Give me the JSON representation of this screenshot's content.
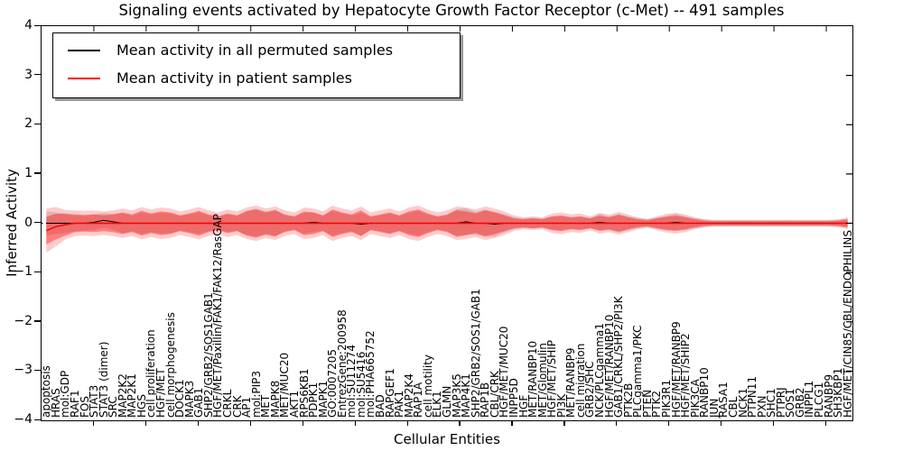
{
  "chart_data": {
    "type": "line",
    "title": "Signaling events activated by Hepatocyte Growth Factor Receptor (c-Met) -- 491 samples",
    "xlabel": "Cellular Entities",
    "ylabel": "Inferred Activity",
    "ylim": [
      -4,
      4
    ],
    "ytick_values": [
      4,
      3,
      2,
      1,
      0,
      -1,
      -2,
      -3,
      -4
    ],
    "ytick_labels": [
      "4",
      "3",
      "2",
      "1",
      "0",
      "−1",
      "−2",
      "−3",
      "−4"
    ],
    "grid": false,
    "legend_position": "upper left",
    "zero_line": {
      "style": "dotted",
      "color": "#000000",
      "y": 0
    },
    "categories": [
      "apoptosis",
      "HRAS",
      "mol:GDP",
      "RAF1",
      "FOS",
      "STAT3",
      "STAT3 (dimer)",
      "SRC",
      "MAP2K2",
      "MAP2K1",
      "HGS",
      "cell proliferation",
      "HGF/MET",
      "cell morphogenesis",
      "DOCK1",
      "MAPK3",
      "GAB1",
      "SHP2/GRB2/SOS1GAB1",
      "HGF/MET/Paxillin/FAK1/FAK12/RasGAP",
      "CRKL",
      "CRK",
      "AP1",
      "mol:PIP3",
      "MET",
      "MAPK8",
      "MET/MUC20",
      "AKT1",
      "RPS6KB1",
      "PDPK1",
      "MAPK1",
      "GO:0007205",
      "EntrezGene:200958",
      "mol:SU11274",
      "mol:SU5416",
      "mol:PHA665752",
      "BAD",
      "RAPGEF1",
      "PAK1",
      "MAP2K4",
      "RAP1A",
      "cell motility",
      "ELK1",
      "GLMN",
      "MAP3K5",
      "MAP4K1",
      "SHP2/GRB2/SOS1/GAB1",
      "RAP1B",
      "CBL/CRK",
      "HGF/MET/MUC20",
      "INPP5D",
      "HGF",
      "MET/RANBP10",
      "MET/Glomulin",
      "HGF/MET/SHIP",
      "PI3K",
      "MET/RANBP9",
      "cell migration",
      "GRB2/SHC",
      "NCK/PLCgamma1",
      "HGF/MET/RANBP10",
      "GAB1/CRKL/SHP2/PI3K",
      "PTK2B",
      "PLCgamma1/PKC",
      "PTEN",
      "PTK2",
      "PIK3R1",
      "HGF/MET/RANBP9",
      "HGF/MET/SHIP2",
      "PIK3CA",
      "RANBP10",
      "JUN",
      "RASA1",
      "CBL",
      "NCK1",
      "PTPN11",
      "PXN",
      "SHC1",
      "PTPRJ",
      "SOS1",
      "GRB2",
      "INPPL1",
      "PLCG1",
      "RANBP9",
      "SH3KBP1",
      "HGF/MET/CIN85/CBL/ENDOPHILINS"
    ],
    "series": [
      {
        "name": "Mean activity in all permuted samples",
        "color": "#000000",
        "values": [
          0,
          0,
          0,
          0,
          0,
          0.02,
          0.06,
          0.03,
          0,
          0,
          0,
          0,
          0,
          0,
          0,
          0,
          0,
          0,
          0,
          0,
          0,
          0,
          0,
          0,
          0,
          0,
          0,
          0,
          0.02,
          0,
          0,
          0,
          0,
          -0.02,
          0,
          0,
          0,
          0,
          0,
          0,
          0,
          0,
          0,
          0,
          0.03,
          0,
          0,
          -0.02,
          0,
          0,
          0,
          0,
          0,
          0,
          0,
          0,
          0,
          0,
          0.02,
          0,
          0,
          0,
          0,
          0,
          0,
          0,
          0.02,
          0,
          0,
          0,
          0,
          0,
          0,
          0,
          0,
          0,
          0,
          0,
          0,
          0,
          0,
          0,
          0,
          0,
          0
        ]
      },
      {
        "name": "Mean activity in patient samples",
        "color": "#ff0000",
        "values": [
          -0.15,
          -0.07,
          -0.03,
          0,
          0,
          0,
          0,
          0,
          0,
          0,
          0,
          0,
          0,
          0,
          0,
          0,
          0,
          0,
          0,
          0,
          0,
          0,
          0,
          0,
          0,
          0,
          0,
          0,
          0,
          0,
          0,
          0,
          0,
          0,
          0,
          0,
          0,
          0,
          0,
          0,
          0,
          0,
          0,
          0,
          0,
          0,
          0,
          0,
          0,
          0,
          0,
          0,
          0,
          0,
          0,
          0,
          0,
          0,
          0,
          0,
          0,
          0,
          0,
          0,
          0,
          0,
          0,
          0,
          0,
          0,
          0,
          0,
          0,
          0,
          0,
          0,
          0,
          0,
          0,
          0,
          0,
          0,
          0,
          0,
          0
        ]
      }
    ],
    "bands": {
      "gray_color": "#999999",
      "gray_opacity": 0.35,
      "red_color": "#ff0000",
      "red_inner_opacity": 0.38,
      "red_outer_opacity": 0.2,
      "gray_half_width": [
        0.24,
        0.22,
        0.2,
        0.16,
        0.15,
        0.16,
        0.15,
        0.16,
        0.2,
        0.16,
        0.22,
        0.18,
        0.21,
        0.2,
        0.15,
        0.18,
        0.22,
        0.16,
        0.13,
        0.18,
        0.15,
        0.26,
        0.3,
        0.24,
        0.28,
        0.16,
        0.13,
        0.21,
        0.2,
        0.15,
        0.25,
        0.2,
        0.16,
        0.23,
        0.13,
        0.16,
        0.2,
        0.15,
        0.21,
        0.25,
        0.18,
        0.13,
        0.16,
        0.29,
        0.27,
        0.23,
        0.28,
        0.25,
        0.19,
        0.12,
        0.1,
        0.11,
        0.1,
        0.13,
        0.14,
        0.11,
        0.13,
        0.1,
        0.17,
        0.14,
        0.19,
        0.14,
        0.1,
        0.08,
        0.11,
        0.15,
        0.17,
        0.14,
        0.1,
        0.08,
        0.07,
        0.07,
        0.07,
        0.07,
        0.07,
        0.07,
        0.07,
        0.07,
        0.07,
        0.07,
        0.07,
        0.07,
        0.07,
        0.07,
        0.09
      ],
      "red_inner_half_width": [
        0.28,
        0.26,
        0.22,
        0.18,
        0.17,
        0.18,
        0.16,
        0.18,
        0.22,
        0.18,
        0.25,
        0.2,
        0.24,
        0.22,
        0.16,
        0.2,
        0.25,
        0.18,
        0.14,
        0.2,
        0.16,
        0.24,
        0.28,
        0.22,
        0.26,
        0.18,
        0.14,
        0.24,
        0.22,
        0.16,
        0.28,
        0.22,
        0.18,
        0.26,
        0.14,
        0.18,
        0.22,
        0.16,
        0.24,
        0.28,
        0.2,
        0.14,
        0.18,
        0.26,
        0.24,
        0.2,
        0.26,
        0.22,
        0.16,
        0.1,
        0.08,
        0.1,
        0.08,
        0.14,
        0.16,
        0.12,
        0.14,
        0.1,
        0.15,
        0.12,
        0.17,
        0.12,
        0.08,
        0.06,
        0.1,
        0.13,
        0.15,
        0.12,
        0.08,
        0.05,
        0.04,
        0.04,
        0.04,
        0.04,
        0.04,
        0.04,
        0.04,
        0.04,
        0.04,
        0.04,
        0.04,
        0.04,
        0.04,
        0.05,
        0.08
      ],
      "red_outer_half_width": [
        0.45,
        0.4,
        0.3,
        0.26,
        0.25,
        0.26,
        0.24,
        0.26,
        0.3,
        0.26,
        0.33,
        0.28,
        0.32,
        0.3,
        0.24,
        0.28,
        0.33,
        0.26,
        0.22,
        0.28,
        0.24,
        0.32,
        0.36,
        0.3,
        0.34,
        0.26,
        0.22,
        0.32,
        0.3,
        0.24,
        0.36,
        0.3,
        0.26,
        0.34,
        0.22,
        0.26,
        0.3,
        0.24,
        0.32,
        0.36,
        0.28,
        0.22,
        0.26,
        0.34,
        0.32,
        0.28,
        0.34,
        0.3,
        0.24,
        0.16,
        0.12,
        0.14,
        0.12,
        0.2,
        0.22,
        0.18,
        0.2,
        0.14,
        0.21,
        0.18,
        0.23,
        0.18,
        0.12,
        0.09,
        0.14,
        0.19,
        0.21,
        0.18,
        0.12,
        0.08,
        0.06,
        0.06,
        0.06,
        0.06,
        0.06,
        0.06,
        0.06,
        0.06,
        0.06,
        0.06,
        0.06,
        0.06,
        0.06,
        0.08,
        0.12
      ]
    }
  },
  "legend": {
    "items": [
      {
        "label": "Mean activity in all permuted samples",
        "color": "#000000"
      },
      {
        "label": "Mean activity in patient samples",
        "color": "#ff0000"
      }
    ]
  }
}
